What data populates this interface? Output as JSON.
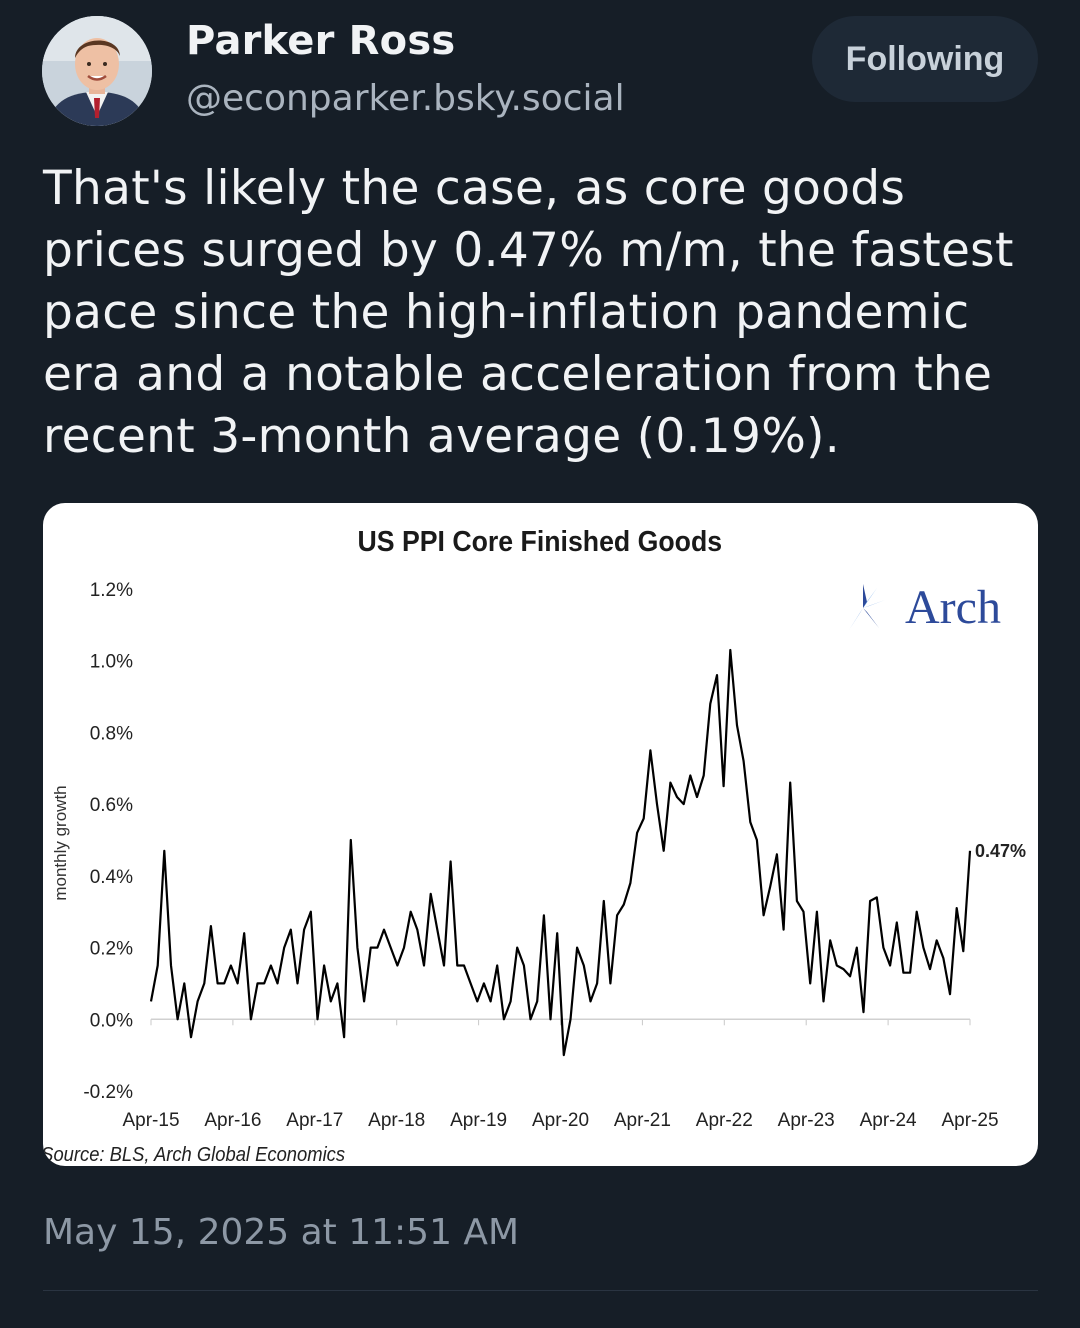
{
  "post": {
    "author_name": "Parker Ross",
    "author_handle": "@econparker.bsky.social",
    "follow_label": "Following",
    "text": "That's likely the case, as core goods prices surged by 0.47% m/m, the fastest pace since the high-inflation pandemic era and a notable acceleration from the recent 3-month average (0.19%).",
    "timestamp": "May 15, 2025 at 11:51 AM"
  },
  "chart_data": {
    "type": "line",
    "title": "US PPI Core Finished Goods",
    "ylabel": "monthly growth",
    "xlabel": "",
    "ylim": [
      -0.2,
      1.2
    ],
    "y_ticks": [
      "1.2%",
      "1.0%",
      "0.8%",
      "0.6%",
      "0.4%",
      "0.2%",
      "0.0%",
      "-0.2%"
    ],
    "y_tick_values": [
      1.2,
      1.0,
      0.8,
      0.6,
      0.4,
      0.2,
      0.0,
      -0.2
    ],
    "x_tick_labels": [
      "Apr-15",
      "Apr-16",
      "Apr-17",
      "Apr-18",
      "Apr-19",
      "Apr-20",
      "Apr-21",
      "Apr-22",
      "Apr-23",
      "Apr-24",
      "Apr-25"
    ],
    "series_start": "Apr-15",
    "series_end": "Apr-25",
    "source": "Source: BLS, Arch Global Economics",
    "logo_text": "Arch",
    "end_label": "0.47%",
    "line_color": "#000000",
    "series": [
      {
        "name": "",
        "values": [
          0.05,
          0.15,
          0.47,
          0.15,
          0.0,
          0.1,
          -0.05,
          0.05,
          0.1,
          0.26,
          0.1,
          0.1,
          0.15,
          0.1,
          0.24,
          0.0,
          0.1,
          0.1,
          0.15,
          0.1,
          0.2,
          0.25,
          0.1,
          0.25,
          0.3,
          0.0,
          0.15,
          0.05,
          0.1,
          -0.05,
          0.5,
          0.2,
          0.05,
          0.2,
          0.2,
          0.25,
          0.2,
          0.15,
          0.2,
          0.3,
          0.25,
          0.15,
          0.35,
          0.25,
          0.15,
          0.44,
          0.15,
          0.15,
          0.1,
          0.05,
          0.1,
          0.05,
          0.15,
          0.0,
          0.05,
          0.2,
          0.15,
          0.0,
          0.05,
          0.29,
          0.0,
          0.24,
          -0.1,
          0.0,
          0.2,
          0.15,
          0.05,
          0.1,
          0.33,
          0.1,
          0.29,
          0.32,
          0.38,
          0.52,
          0.56,
          0.75,
          0.6,
          0.47,
          0.66,
          0.62,
          0.6,
          0.68,
          0.62,
          0.68,
          0.88,
          0.96,
          0.65,
          1.03,
          0.82,
          0.72,
          0.55,
          0.5,
          0.29,
          0.37,
          0.46,
          0.25,
          0.66,
          0.33,
          0.3,
          0.1,
          0.3,
          0.05,
          0.22,
          0.15,
          0.14,
          0.12,
          0.2,
          0.02,
          0.33,
          0.34,
          0.2,
          0.15,
          0.27,
          0.13,
          0.13,
          0.3,
          0.2,
          0.14,
          0.22,
          0.17,
          0.07,
          0.31,
          0.19,
          0.47
        ]
      }
    ]
  }
}
